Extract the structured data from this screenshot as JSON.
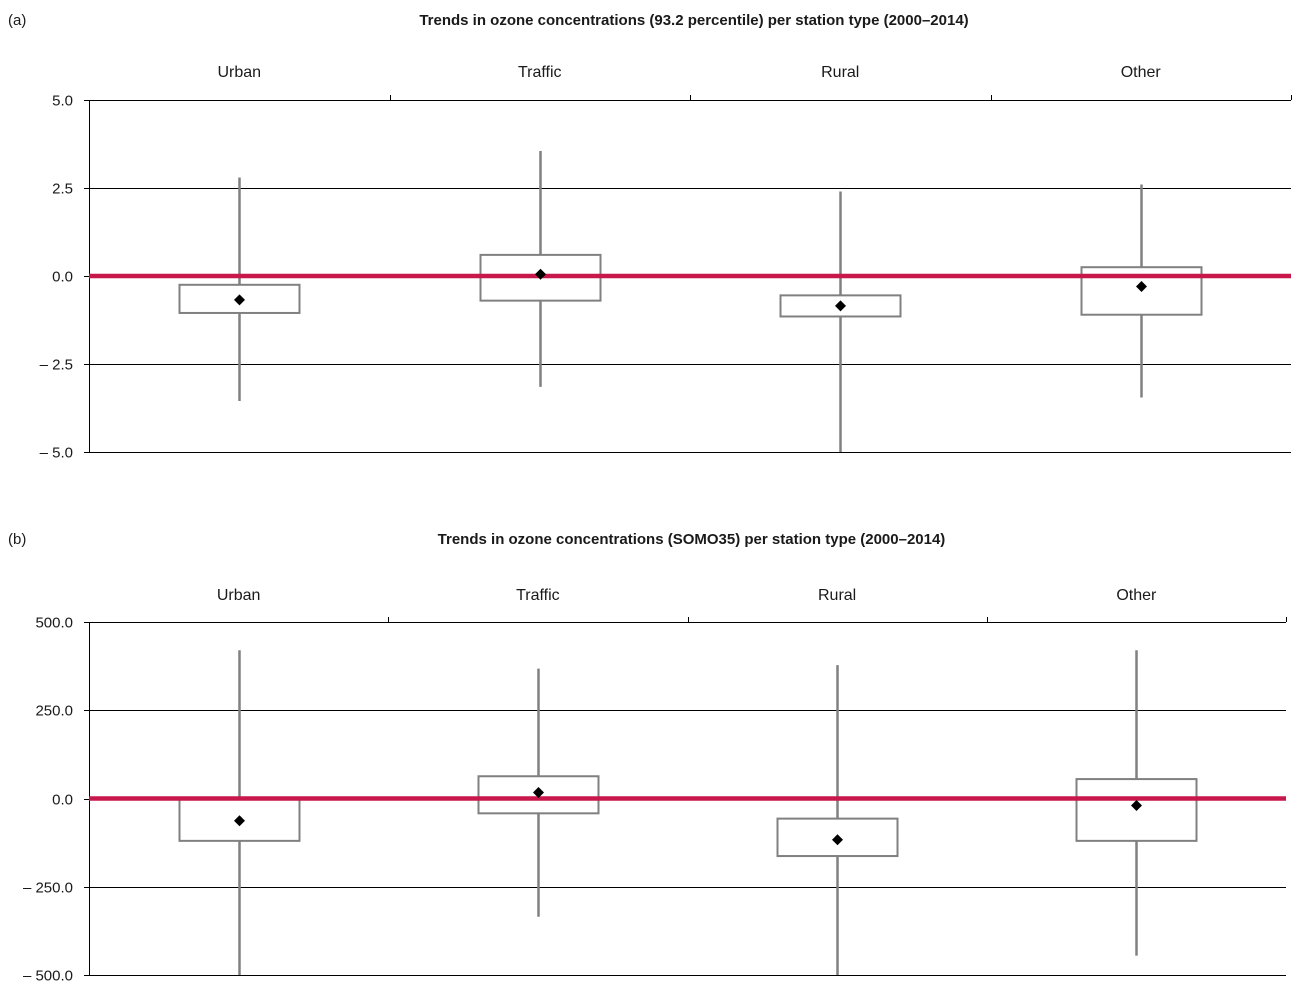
{
  "colors": {
    "zero_line": "#c8174b",
    "box": "#808080",
    "mean_marker": "#000000",
    "axis": "#000000",
    "grid": "#000000"
  },
  "chart_data": [
    {
      "type": "box",
      "panel_label": "(a)",
      "title": "Trends in ozone concentrations (93.2 percentile) per station type (2000–2014)",
      "categories": [
        "Urban",
        "Traffic",
        "Rural",
        "Other"
      ],
      "category_axis_position": "top",
      "ylim": [
        -5.0,
        5.0
      ],
      "yticks": [
        5.0,
        2.5,
        0.0,
        -2.5,
        -5.0
      ],
      "ytick_labels": [
        "5.0",
        "2.5",
        "0.0",
        "– 2.5",
        "– 5.0"
      ],
      "grid": true,
      "reference_line": 0.0,
      "boxes": [
        {
          "category": "Urban",
          "whisker_low": -3.55,
          "q1": -1.05,
          "q3": -0.25,
          "mean": -0.68,
          "whisker_high": 2.8
        },
        {
          "category": "Traffic",
          "whisker_low": -3.15,
          "q1": -0.7,
          "q3": 0.6,
          "mean": 0.05,
          "whisker_high": 3.55
        },
        {
          "category": "Rural",
          "whisker_low": -5.0,
          "q1": -1.15,
          "q3": -0.55,
          "mean": -0.85,
          "whisker_high": 2.4
        },
        {
          "category": "Other",
          "whisker_low": -3.45,
          "q1": -1.1,
          "q3": 0.25,
          "mean": -0.3,
          "whisker_high": 2.6
        }
      ]
    },
    {
      "type": "box",
      "panel_label": "(b)",
      "title": "Trends in ozone concentrations (SOMO35) per station type (2000–2014)",
      "categories": [
        "Urban",
        "Traffic",
        "Rural",
        "Other"
      ],
      "category_axis_position": "top",
      "ylim": [
        -500.0,
        500.0
      ],
      "yticks": [
        500.0,
        250.0,
        0.0,
        -250.0,
        -500.0
      ],
      "ytick_labels": [
        "500.0",
        "250.0",
        "0.0",
        "– 250.0",
        "– 500.0"
      ],
      "grid": true,
      "reference_line": 0.0,
      "boxes": [
        {
          "category": "Urban",
          "whisker_low": -500.0,
          "q1": -120.0,
          "q3": 0.0,
          "mean": -63.0,
          "whisker_high": 420.0
        },
        {
          "category": "Traffic",
          "whisker_low": -335.0,
          "q1": -42.0,
          "q3": 63.0,
          "mean": 17.0,
          "whisker_high": 368.0
        },
        {
          "category": "Rural",
          "whisker_low": -500.0,
          "q1": -163.0,
          "q3": -57.0,
          "mean": -117.0,
          "whisker_high": 378.0
        },
        {
          "category": "Other",
          "whisker_low": -445.0,
          "q1": -120.0,
          "q3": 55.0,
          "mean": -20.0,
          "whisker_high": 420.0
        }
      ]
    }
  ]
}
